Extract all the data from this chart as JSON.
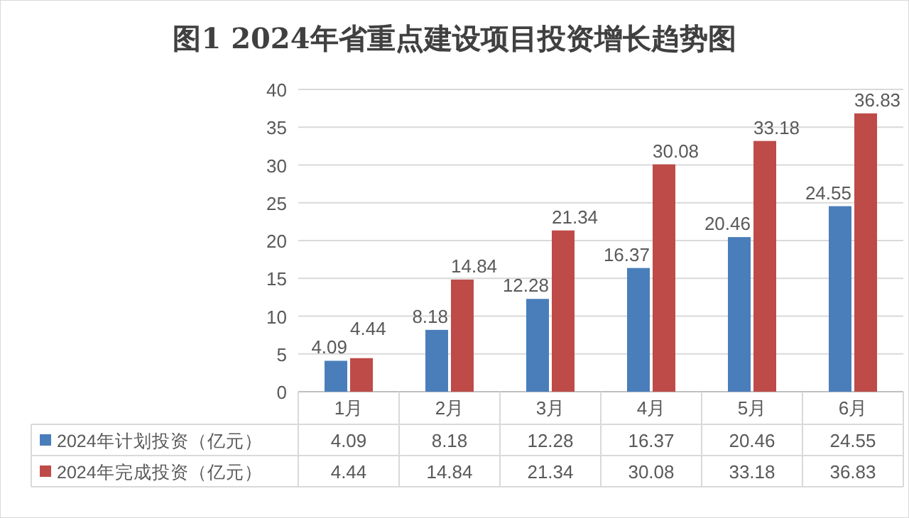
{
  "chart_data": {
    "type": "bar",
    "title": "图1   2024年省重点建设项目投资增长趋势图",
    "categories": [
      "1月",
      "2月",
      "3月",
      "4月",
      "5月",
      "6月"
    ],
    "series": [
      {
        "name": "2024年计划投资（亿元）",
        "color": "#4a7ebb",
        "values": [
          4.09,
          8.18,
          12.28,
          16.37,
          20.46,
          24.55
        ],
        "value_labels": [
          "4.09",
          "8.18",
          "12.28",
          "16.37",
          "20.46",
          "24.55"
        ]
      },
      {
        "name": "2024年完成投资（亿元）",
        "color": "#be4b48",
        "values": [
          4.44,
          14.84,
          21.34,
          30.08,
          33.18,
          36.83
        ],
        "value_labels": [
          "4.44",
          "14.84",
          "21.34",
          "30.08",
          "33.18",
          "36.83"
        ]
      }
    ],
    "annotations": [
      "4.09",
      "8.18",
      "12.28",
      "16.37",
      "20.46",
      "24.55",
      "4.44",
      "14.84",
      "21.34",
      "30.08",
      "33.18",
      "36.83"
    ],
    "ylim": [
      0,
      40
    ],
    "yticks": [
      0,
      5,
      10,
      15,
      20,
      25,
      30,
      35,
      40
    ],
    "grid": "y",
    "legend": "bottom left"
  }
}
